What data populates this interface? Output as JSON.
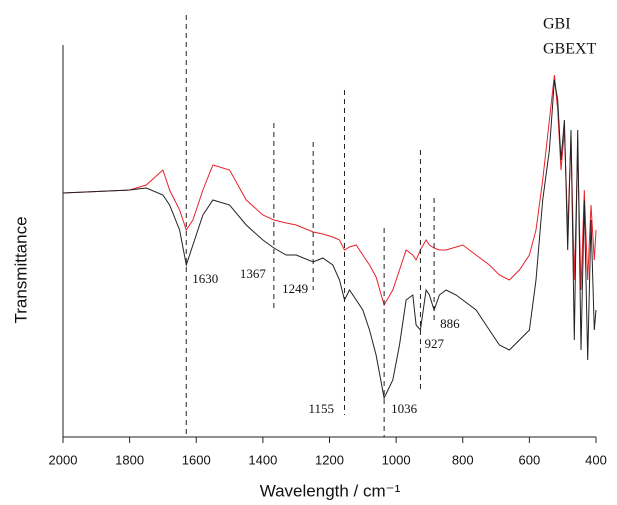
{
  "chart_data": {
    "type": "line",
    "x_label": "Wavelength / cm⁻¹",
    "y_label": "Transmittance",
    "x": [
      2000,
      1800,
      1750,
      1700,
      1680,
      1650,
      1630,
      1610,
      1580,
      1550,
      1500,
      1450,
      1400,
      1367,
      1330,
      1300,
      1249,
      1220,
      1190,
      1170,
      1155,
      1140,
      1120,
      1100,
      1080,
      1060,
      1036,
      1010,
      990,
      970,
      950,
      940,
      927,
      910,
      900,
      886,
      870,
      850,
      820,
      800,
      760,
      720,
      690,
      660,
      630,
      600,
      580,
      560,
      540,
      525,
      515,
      505,
      495,
      485,
      475,
      465,
      455,
      445,
      435,
      425,
      415,
      405,
      400
    ],
    "series": [
      {
        "name": "GBI",
        "color": "#e8232a",
        "values": [
          244,
          247,
          252,
          267,
          247,
          227,
          207,
          217,
          247,
          272,
          267,
          237,
          222,
          217,
          214,
          212,
          205,
          203,
          200,
          197,
          187,
          190,
          192,
          182,
          172,
          160,
          132,
          147,
          167,
          187,
          182,
          177,
          187,
          197,
          192,
          189,
          187,
          187,
          190,
          192,
          182,
          172,
          162,
          157,
          167,
          182,
          207,
          257,
          317,
          362,
          327,
          267,
          307,
          207,
          297,
          157,
          287,
          147,
          247,
          157,
          232,
          177,
          207
        ]
      },
      {
        "name": "GBEXT",
        "color": "#222222",
        "values": [
          244,
          247,
          249,
          242,
          232,
          207,
          172,
          192,
          222,
          237,
          232,
          212,
          197,
          189,
          182,
          182,
          175,
          179,
          172,
          157,
          137,
          147,
          137,
          127,
          107,
          82,
          39,
          57,
          92,
          137,
          142,
          112,
          107,
          147,
          142,
          127,
          142,
          147,
          142,
          137,
          127,
          107,
          92,
          87,
          97,
          107,
          157,
          237,
          287,
          357,
          337,
          277,
          317,
          187,
          307,
          97,
          307,
          87,
          237,
          77,
          217,
          107,
          127
        ]
      }
    ],
    "peaks": [
      1630,
      1367,
      1249,
      1155,
      1036,
      927,
      886
    ],
    "xlim": [
      2000,
      400
    ],
    "ylim": [
      0,
      392
    ],
    "xticks": [
      2000,
      1800,
      1600,
      1400,
      1200,
      1000,
      800,
      600,
      400
    ]
  }
}
